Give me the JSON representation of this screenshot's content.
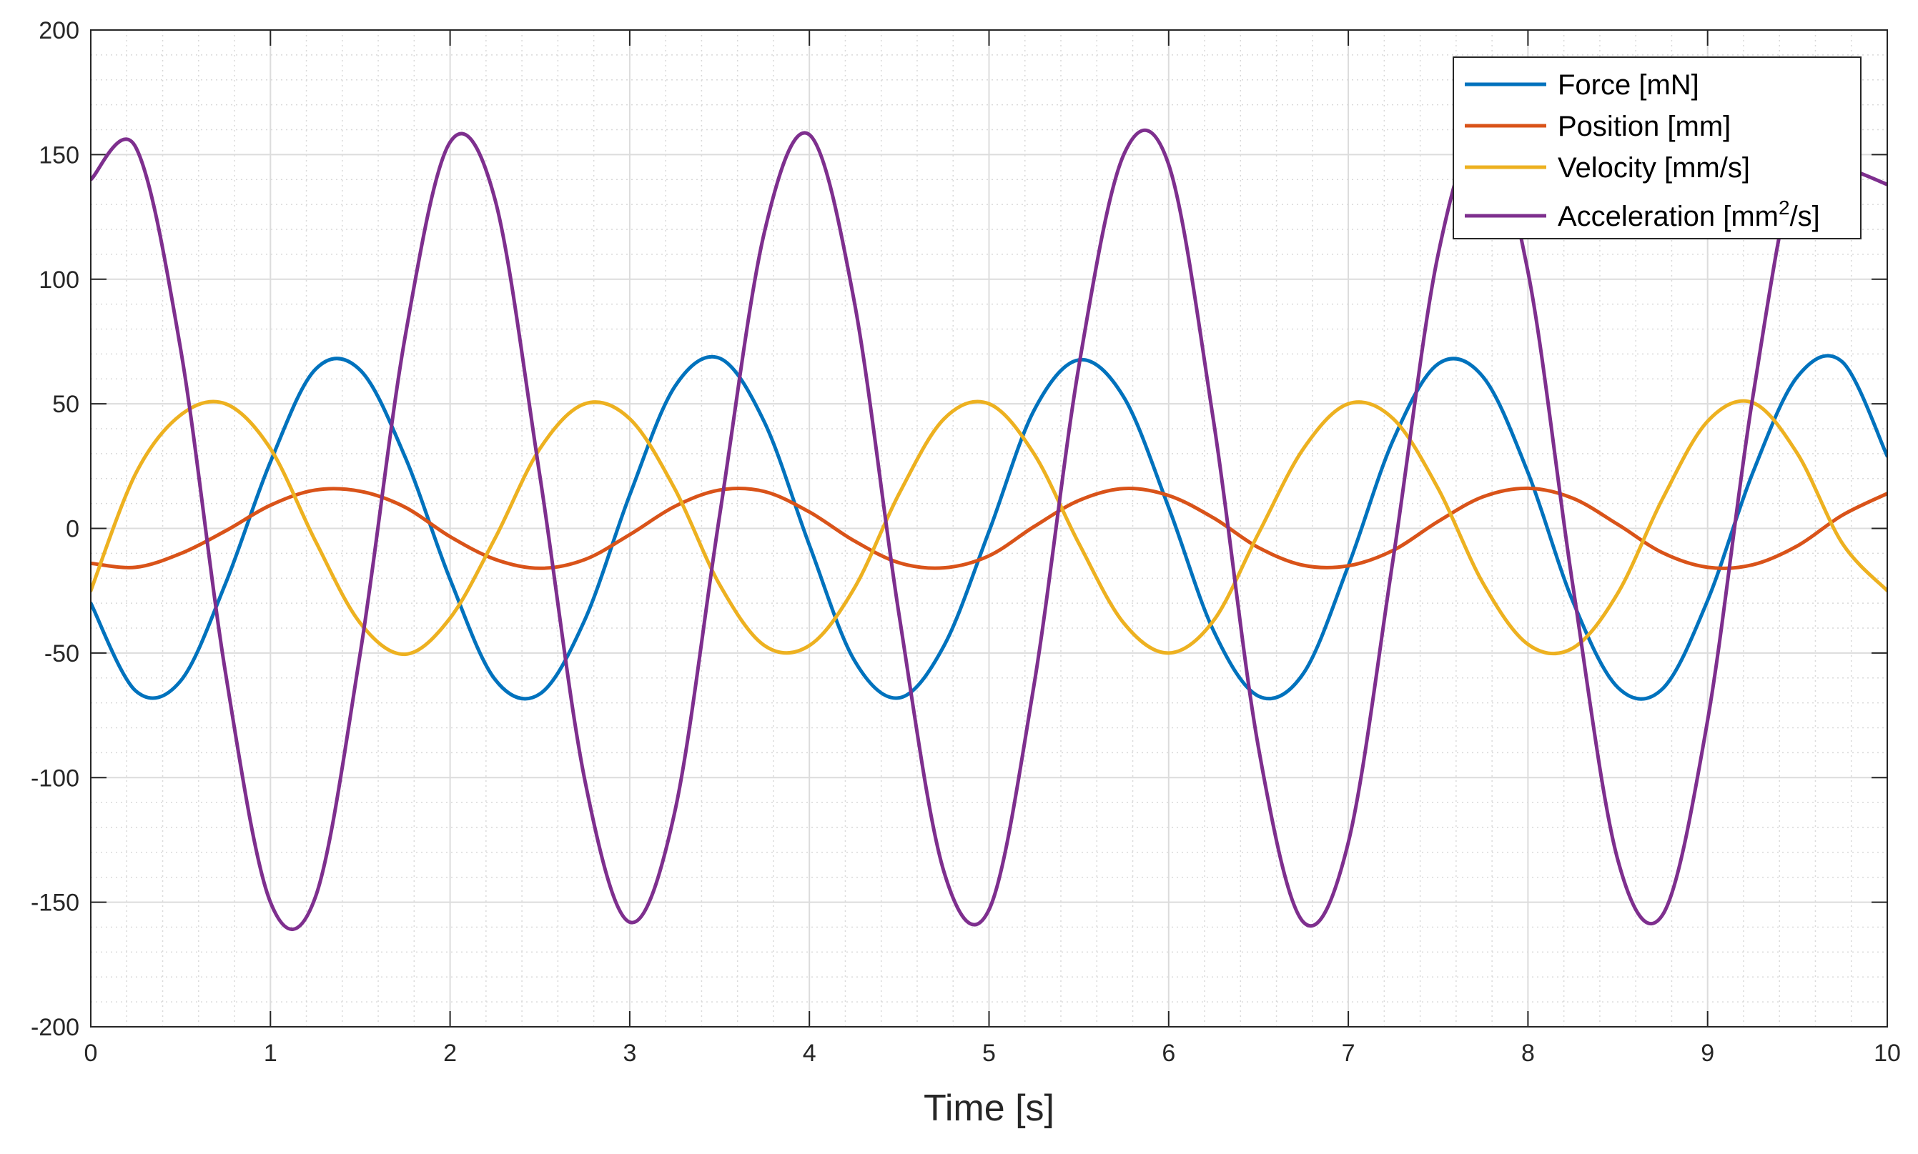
{
  "chart_data": {
    "type": "line",
    "title": "",
    "xlabel": "Time [s]",
    "ylabel": "",
    "xlim": [
      0,
      10
    ],
    "ylim": [
      -200,
      200
    ],
    "xticks": [
      0,
      1,
      2,
      3,
      4,
      5,
      6,
      7,
      8,
      9,
      10
    ],
    "yticks": [
      -200,
      -150,
      -100,
      -50,
      0,
      50,
      100,
      150,
      200
    ],
    "xtick_labels": [
      "0",
      "1",
      "2",
      "3",
      "4",
      "5",
      "6",
      "7",
      "8",
      "9",
      "10"
    ],
    "ytick_labels": [
      "-200",
      "-150",
      "-100",
      "-50",
      "0",
      "50",
      "100",
      "150",
      "200"
    ],
    "grid": true,
    "minor_grid": true,
    "legend_position": "top-right",
    "x": [
      0,
      0.25,
      0.5,
      0.75,
      1,
      1.25,
      1.5,
      1.75,
      2,
      2.25,
      2.5,
      2.75,
      3,
      3.25,
      3.5,
      3.75,
      4,
      4.25,
      4.5,
      4.75,
      5,
      5.25,
      5.5,
      5.75,
      6,
      6.25,
      6.5,
      6.75,
      7,
      7.25,
      7.5,
      7.75,
      8,
      8.25,
      8.5,
      8.75,
      9,
      9.25,
      9.5,
      9.75,
      10
    ],
    "series": [
      {
        "name": "Force [mN]",
        "label_main": "Force [mN]",
        "color": "#0072BD",
        "values": [
          -30.0,
          -65.2,
          -61.2,
          -22.1,
          26.7,
          63.8,
          63.5,
          28.6,
          -20.4,
          -60.6,
          -66.4,
          -36.7,
          13.4,
          56.8,
          68.3,
          42.6,
          -6.7,
          -52.9,
          -68.0,
          -47.0,
          -1.2,
          47.3,
          67.6,
          52.7,
          8.4,
          -41.1,
          -67.3,
          -58.2,
          -15.0,
          35.5,
          66.0,
          60.8,
          22.4,
          -29.3,
          -63.8,
          -64.3,
          -28.9,
          22.1,
          60.9,
          66.8,
          29.0
        ]
      },
      {
        "name": "Position [mm]",
        "label_main": "Position [mm]",
        "color": "#D95319",
        "values": [
          -14.0,
          -15.6,
          -10.1,
          -1.0,
          9.3,
          15.4,
          14.9,
          8.5,
          -3.3,
          -12.4,
          -16.0,
          -12.5,
          -2.5,
          8.8,
          15.4,
          14.8,
          6.6,
          -5.0,
          -13.8,
          -15.8,
          -11.0,
          0.7,
          11.2,
          16.0,
          13.2,
          4.2,
          -7.7,
          -14.8,
          -15.0,
          -8.8,
          2.8,
          12.7,
          16.1,
          12.1,
          1.6,
          -9.8,
          -15.6,
          -14.6,
          -7.0,
          5.3,
          14.0
        ]
      },
      {
        "name": "Velocity [mm/s]",
        "label_main": "Velocity [mm/s]",
        "color": "#EDB120",
        "values": [
          -25.0,
          22.0,
          45.5,
          50.0,
          32.0,
          -5.0,
          -38.0,
          -50.5,
          -36.0,
          -4.0,
          32.0,
          50.0,
          44.0,
          16.0,
          -22.5,
          -47.0,
          -47.0,
          -24.0,
          14.0,
          44.0,
          50.0,
          30.0,
          -6.0,
          -38.0,
          -50.0,
          -37.0,
          -2.0,
          32.0,
          50.0,
          44.0,
          16.0,
          -22.0,
          -46.5,
          -48.0,
          -26.0,
          12.0,
          43.0,
          50.5,
          30.0,
          -6.0,
          -25.0
        ]
      },
      {
        "name": "Acceleration [mm2/s]",
        "label_main": "Acceleration [mm",
        "label_sup": "2",
        "label_tail": "/s]",
        "color": "#7E2F8E",
        "values": [
          140.0,
          153.0,
          72.0,
          -58.0,
          -150.0,
          -148.0,
          -50.0,
          77.0,
          155.0,
          132.0,
          21.0,
          -101.0,
          -158.0,
          -114.0,
          5.0,
          119.0,
          158.0,
          91.0,
          -35.0,
          -138.0,
          -153.0,
          -63.0,
          65.0,
          150.0,
          146.0,
          43.0,
          -88.0,
          -158.0,
          -126.0,
          -12.0,
          110.0,
          160.0,
          103.0,
          -23.0,
          -133.0,
          -155.0,
          -77.0,
          52.0,
          147.0,
          145.0,
          138.0
        ]
      }
    ]
  }
}
